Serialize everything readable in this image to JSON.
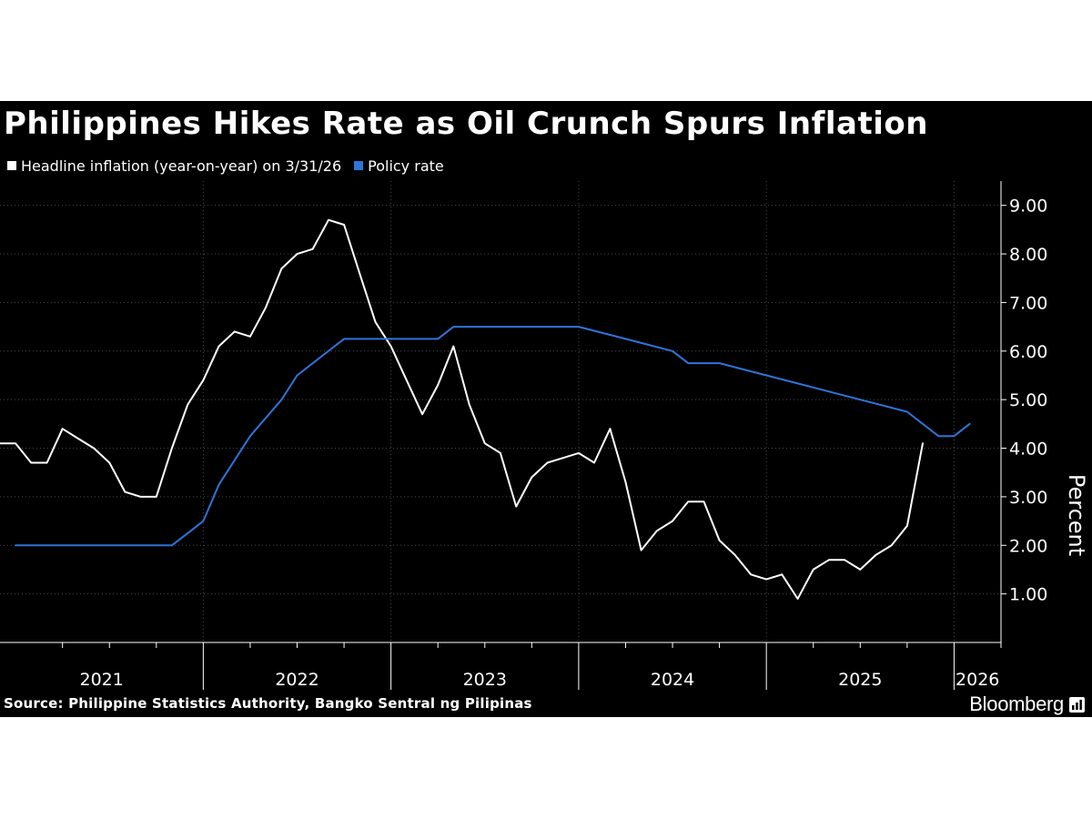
{
  "title": "Philippines Hikes Rate as Oil Crunch Spurs Inflation",
  "colors": {
    "background": "#000000",
    "inflation": "#ffffff",
    "policy": "#2f74d8",
    "grid": "#4a4a4a"
  },
  "legend": {
    "inflation_label": "Headline inflation (year-on-year) on 3/31/26",
    "policy_label": "Policy rate"
  },
  "source": "Source: Philippine Statistics Authority, Bangko Sentral ng Pilipinas",
  "brand": {
    "name": "Bloomberg",
    "icon": "bloomberg-chart-icon"
  },
  "chart_data": {
    "type": "line",
    "title": "Philippines Hikes Rate as Oil Crunch Spurs Inflation",
    "ylabel": "Percent",
    "xlabel": "",
    "ylim": [
      0,
      9.5
    ],
    "yticks": [
      1,
      2,
      3,
      4,
      5,
      6,
      7,
      8,
      9
    ],
    "ytick_labels": [
      "1.00",
      "2.00",
      "3.00",
      "4.00",
      "5.00",
      "6.00",
      "7.00",
      "8.00",
      "9.00"
    ],
    "xlim": [
      2020.917,
      2026.25
    ],
    "year_labels": [
      "2021",
      "2022",
      "2023",
      "2024",
      "2025",
      "2026"
    ],
    "grid": true,
    "legend_position": "top-left",
    "series": [
      {
        "name": "Headline inflation (year-on-year) on 3/31/26",
        "color": "#ffffff",
        "x_start": "2020-12",
        "points": [
          [
            2020.917,
            4.1
          ],
          [
            2021.0,
            4.1
          ],
          [
            2021.083,
            3.7
          ],
          [
            2021.167,
            3.7
          ],
          [
            2021.25,
            4.4
          ],
          [
            2021.333,
            4.2
          ],
          [
            2021.417,
            4.0
          ],
          [
            2021.5,
            3.7
          ],
          [
            2021.583,
            3.1
          ],
          [
            2021.667,
            3.0
          ],
          [
            2021.75,
            3.0
          ],
          [
            2021.833,
            4.0
          ],
          [
            2021.917,
            4.9
          ],
          [
            2022.0,
            5.4
          ],
          [
            2022.083,
            6.1
          ],
          [
            2022.167,
            6.4
          ],
          [
            2022.25,
            6.3
          ],
          [
            2022.333,
            6.9
          ],
          [
            2022.417,
            7.7
          ],
          [
            2022.5,
            8.0
          ],
          [
            2022.583,
            8.1
          ],
          [
            2022.667,
            8.7
          ],
          [
            2022.75,
            8.6
          ],
          [
            2022.833,
            7.6
          ],
          [
            2022.917,
            6.6
          ],
          [
            2023.0,
            6.1
          ],
          [
            2023.083,
            5.4
          ],
          [
            2023.167,
            4.7
          ],
          [
            2023.25,
            5.3
          ],
          [
            2023.333,
            6.1
          ],
          [
            2023.417,
            4.9
          ],
          [
            2023.5,
            4.1
          ],
          [
            2023.583,
            3.9
          ],
          [
            2023.667,
            2.8
          ],
          [
            2023.75,
            3.4
          ],
          [
            2023.833,
            3.7
          ],
          [
            2023.917,
            3.8
          ],
          [
            2024.0,
            3.9
          ],
          [
            2024.083,
            3.7
          ],
          [
            2024.167,
            4.4
          ],
          [
            2024.25,
            3.3
          ],
          [
            2024.333,
            1.9
          ],
          [
            2024.417,
            2.3
          ],
          [
            2024.5,
            2.5
          ],
          [
            2024.583,
            2.9
          ],
          [
            2024.667,
            2.9
          ],
          [
            2024.75,
            2.1
          ],
          [
            2024.833,
            1.8
          ],
          [
            2024.917,
            1.4
          ],
          [
            2025.0,
            1.3
          ],
          [
            2025.083,
            1.4
          ],
          [
            2025.167,
            0.9
          ],
          [
            2025.25,
            1.5
          ],
          [
            2025.333,
            1.7
          ],
          [
            2025.417,
            1.7
          ],
          [
            2025.5,
            1.5
          ],
          [
            2025.583,
            1.8
          ],
          [
            2025.667,
            2.0
          ],
          [
            2025.75,
            2.4
          ],
          [
            2025.833,
            4.1
          ]
        ]
      },
      {
        "name": "Policy rate",
        "color": "#2f74d8",
        "points": [
          [
            2021.0,
            2.0
          ],
          [
            2021.833,
            2.0
          ],
          [
            2021.917,
            2.25
          ],
          [
            2022.0,
            2.5
          ],
          [
            2022.083,
            3.25
          ],
          [
            2022.25,
            4.25
          ],
          [
            2022.417,
            5.0
          ],
          [
            2022.5,
            5.5
          ],
          [
            2022.75,
            6.25
          ],
          [
            2022.833,
            6.25
          ],
          [
            2023.25,
            6.25
          ],
          [
            2023.333,
            6.5
          ],
          [
            2024.0,
            6.5
          ],
          [
            2024.25,
            6.25
          ],
          [
            2024.5,
            6.0
          ],
          [
            2024.583,
            5.75
          ],
          [
            2024.75,
            5.75
          ],
          [
            2025.0,
            5.5
          ],
          [
            2025.25,
            5.25
          ],
          [
            2025.5,
            5.0
          ],
          [
            2025.75,
            4.75
          ],
          [
            2025.833,
            4.5
          ],
          [
            2025.917,
            4.25
          ],
          [
            2026.0,
            4.25
          ],
          [
            2026.083,
            4.5
          ]
        ]
      }
    ]
  }
}
